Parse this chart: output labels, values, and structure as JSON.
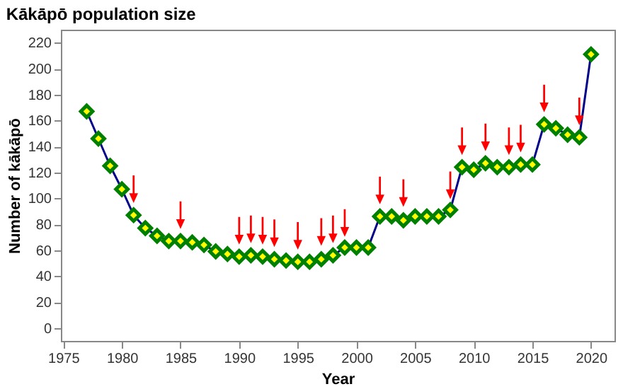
{
  "chart_data": {
    "type": "line",
    "title": "Kākāpō population size",
    "xlabel": "Year",
    "ylabel": "Number of kākāpō",
    "x": [
      1977,
      1978,
      1979,
      1980,
      1981,
      1982,
      1983,
      1984,
      1985,
      1986,
      1987,
      1988,
      1989,
      1990,
      1991,
      1992,
      1993,
      1994,
      1995,
      1996,
      1997,
      1998,
      1999,
      2000,
      2001,
      2002,
      2003,
      2004,
      2005,
      2006,
      2007,
      2008,
      2009,
      2010,
      2011,
      2012,
      2013,
      2014,
      2015,
      2016,
      2017,
      2018,
      2019,
      2020
    ],
    "series": [
      {
        "color": "#00008b",
        "marker": "diamond",
        "values": [
          167,
          146,
          125,
          107,
          87,
          77,
          71,
          67,
          67,
          66,
          64,
          59,
          57,
          55,
          56,
          55,
          53,
          52,
          51,
          51,
          53,
          56,
          62,
          62,
          62,
          86,
          86,
          83,
          86,
          86,
          86,
          91,
          124,
          122,
          127,
          124,
          124,
          126,
          126,
          157,
          154,
          149,
          147,
          211
        ]
      },
      {
        "type": "scatter",
        "color": "#ff0000",
        "marker": "triangle",
        "x": [
          1981,
          1985,
          1990,
          1991,
          1992,
          1993,
          1995,
          1997,
          1998,
          1999,
          2002,
          2004,
          2008,
          2009,
          2011,
          2013,
          2014,
          2016,
          2019
        ],
        "values": [
          107,
          87,
          75,
          76,
          75,
          73,
          71,
          74,
          76,
          81,
          106,
          104,
          110,
          144,
          147,
          144,
          146,
          177,
          167
        ]
      }
    ],
    "xlim": [
      1974.8,
      2022
    ],
    "xticks": [
      1975,
      1980,
      1985,
      1990,
      1995,
      2000,
      2005,
      2010,
      2015,
      2020
    ],
    "ylim": [
      -10,
      230
    ],
    "yticks": [
      0,
      20,
      40,
      60,
      80,
      100,
      120,
      140,
      160,
      180,
      200,
      220
    ],
    "grid": false
  }
}
